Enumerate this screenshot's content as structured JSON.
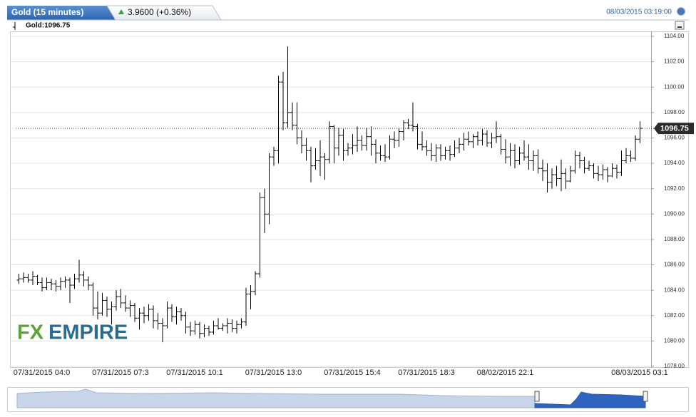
{
  "chart_data": {
    "type": "ohlc",
    "title": "Gold (15 minutes)",
    "change": "3.9600 (+0.36%)",
    "timestamp": "08/03/2015 03:19:00",
    "legend": "Gold:1096.75",
    "watermark": [
      "FX",
      "EMPIRE"
    ],
    "last_price": 1096.75,
    "color": "#000000",
    "grid": true,
    "ylim": [
      1078,
      1104
    ],
    "yticks": [
      {
        "value": 1078,
        "label": "1078.00"
      },
      {
        "value": 1080,
        "label": "1080.00"
      },
      {
        "value": 1082,
        "label": "1082.00"
      },
      {
        "value": 1084,
        "label": "1084.00"
      },
      {
        "value": 1086,
        "label": "1086.00"
      },
      {
        "value": 1088,
        "label": "1088.00"
      },
      {
        "value": 1090,
        "label": "1090.00"
      },
      {
        "value": 1092,
        "label": "1092.00"
      },
      {
        "value": 1094,
        "label": "1094.00"
      },
      {
        "value": 1096,
        "label": "1096.00"
      },
      {
        "value": 1098,
        "label": "1098.00"
      },
      {
        "value": 1100,
        "label": "1100.00"
      },
      {
        "value": 1102,
        "label": "1102.00"
      },
      {
        "value": 1104,
        "label": "1104.00"
      }
    ],
    "categories": [
      null,
      null,
      null,
      null,
      null,
      "07/31/2015 04:0",
      null,
      null,
      null,
      null,
      null,
      null,
      null,
      null,
      null,
      null,
      null,
      null,
      null,
      null,
      null,
      null,
      "07/31/2015 07:3",
      null,
      null,
      null,
      null,
      null,
      null,
      null,
      null,
      null,
      null,
      null,
      null,
      null,
      null,
      null,
      "07/31/2015 10:1",
      null,
      null,
      null,
      null,
      null,
      null,
      null,
      null,
      null,
      null,
      null,
      null,
      null,
      null,
      null,
      null,
      "07/31/2015 13:0",
      null,
      null,
      null,
      null,
      null,
      null,
      null,
      null,
      null,
      null,
      null,
      null,
      null,
      null,
      null,
      null,
      "07/31/2015 15:4",
      null,
      null,
      null,
      null,
      null,
      null,
      null,
      null,
      null,
      null,
      null,
      null,
      null,
      null,
      null,
      "07/31/2015 18:3",
      null,
      null,
      null,
      null,
      null,
      null,
      null,
      null,
      null,
      null,
      null,
      null,
      null,
      null,
      null,
      null,
      "08/02/2015 22:1",
      null,
      null,
      null,
      null,
      null,
      null,
      null,
      null,
      null,
      null,
      null,
      null,
      null,
      null,
      null,
      null,
      null,
      null,
      null,
      null,
      null,
      null,
      null,
      null,
      null,
      null,
      null,
      null,
      "08/03/2015 03:1"
    ],
    "series": [
      {
        "name": "Gold",
        "values": [
          [
            1084.8,
            1085.3,
            1084.5,
            1084.9
          ],
          [
            1084.9,
            1085.4,
            1084.6,
            1085.0
          ],
          [
            1085.0,
            1085.3,
            1084.6,
            1084.8
          ],
          [
            1084.8,
            1085.5,
            1084.4,
            1085.1
          ],
          [
            1085.1,
            1085.2,
            1084.4,
            1084.6
          ],
          [
            1084.6,
            1085.0,
            1083.9,
            1084.2
          ],
          [
            1084.2,
            1085.0,
            1084.0,
            1084.6
          ],
          [
            1084.6,
            1084.9,
            1084.0,
            1084.5
          ],
          [
            1084.5,
            1084.8,
            1083.9,
            1084.3
          ],
          [
            1084.3,
            1085.0,
            1084.0,
            1084.7
          ],
          [
            1084.7,
            1085.1,
            1084.2,
            1084.8
          ],
          [
            1084.8,
            1085.0,
            1083.0,
            1084.4
          ],
          [
            1084.4,
            1085.3,
            1084.1,
            1084.9
          ],
          [
            1084.9,
            1086.4,
            1084.6,
            1085.2
          ],
          [
            1085.2,
            1085.5,
            1084.3,
            1084.8
          ],
          [
            1084.8,
            1085.1,
            1084.0,
            1084.4
          ],
          [
            1084.4,
            1084.6,
            1082.0,
            1082.6
          ],
          [
            1082.6,
            1083.9,
            1081.7,
            1082.2
          ],
          [
            1082.2,
            1083.8,
            1082.0,
            1083.2
          ],
          [
            1083.2,
            1083.5,
            1081.9,
            1082.5
          ],
          [
            1082.5,
            1083.1,
            1081.3,
            1082.7
          ],
          [
            1082.7,
            1084.0,
            1082.4,
            1083.5
          ],
          [
            1083.5,
            1084.1,
            1082.6,
            1083.0
          ],
          [
            1083.0,
            1083.6,
            1082.3,
            1082.6
          ],
          [
            1082.6,
            1083.2,
            1081.9,
            1082.8
          ],
          [
            1082.8,
            1083.0,
            1081.5,
            1081.8
          ],
          [
            1081.8,
            1082.6,
            1080.9,
            1082.2
          ],
          [
            1082.2,
            1082.7,
            1081.4,
            1082.0
          ],
          [
            1082.0,
            1082.9,
            1081.6,
            1082.5
          ],
          [
            1082.5,
            1082.8,
            1081.0,
            1081.6
          ],
          [
            1081.6,
            1082.2,
            1080.9,
            1081.4
          ],
          [
            1081.4,
            1081.8,
            1079.9,
            1081.2
          ],
          [
            1081.2,
            1083.1,
            1081.0,
            1082.6
          ],
          [
            1082.6,
            1082.9,
            1081.5,
            1081.9
          ],
          [
            1081.9,
            1082.7,
            1081.3,
            1082.3
          ],
          [
            1082.3,
            1082.6,
            1081.6,
            1082.0
          ],
          [
            1082.0,
            1082.3,
            1080.6,
            1081.1
          ],
          [
            1081.1,
            1081.5,
            1080.4,
            1080.8
          ],
          [
            1080.8,
            1081.6,
            1080.5,
            1081.3
          ],
          [
            1081.3,
            1081.5,
            1080.2,
            1080.6
          ],
          [
            1080.6,
            1081.3,
            1080.3,
            1081.0
          ],
          [
            1081.0,
            1081.2,
            1080.4,
            1080.7
          ],
          [
            1080.7,
            1081.6,
            1080.5,
            1081.2
          ],
          [
            1081.2,
            1081.8,
            1080.9,
            1081.0
          ],
          [
            1081.0,
            1081.4,
            1080.8,
            1081.2
          ],
          [
            1081.2,
            1081.8,
            1080.6,
            1081.4
          ],
          [
            1081.4,
            1081.7,
            1080.7,
            1081.0
          ],
          [
            1081.0,
            1081.6,
            1080.6,
            1081.3
          ],
          [
            1081.3,
            1081.8,
            1081.0,
            1081.5
          ],
          [
            1081.5,
            1084.2,
            1081.2,
            1083.7
          ],
          [
            1083.7,
            1084.4,
            1082.5,
            1083.9
          ],
          [
            1083.9,
            1085.5,
            1083.6,
            1085.3
          ],
          [
            1085.3,
            1091.7,
            1085.0,
            1091.3
          ],
          [
            1091.3,
            1092.0,
            1088.5,
            1090.0
          ],
          [
            1090.0,
            1094.8,
            1089.2,
            1094.5
          ],
          [
            1094.5,
            1095.3,
            1093.8,
            1095.0
          ],
          [
            1095.0,
            1100.9,
            1094.0,
            1100.4
          ],
          [
            1100.4,
            1101.2,
            1096.6,
            1097.2
          ],
          [
            1097.2,
            1103.2,
            1096.8,
            1098.0
          ],
          [
            1098.0,
            1098.8,
            1096.6,
            1097.0
          ],
          [
            1097.0,
            1098.8,
            1095.5,
            1096.0
          ],
          [
            1096.0,
            1096.6,
            1094.8,
            1095.4
          ],
          [
            1095.4,
            1096.0,
            1094.2,
            1095.0
          ],
          [
            1095.0,
            1095.3,
            1092.5,
            1093.8
          ],
          [
            1093.8,
            1095.2,
            1093.5,
            1094.2
          ],
          [
            1094.2,
            1095.8,
            1093.0,
            1094.5
          ],
          [
            1094.5,
            1094.8,
            1092.7,
            1094.3
          ],
          [
            1094.3,
            1097.3,
            1094.0,
            1096.9
          ],
          [
            1096.9,
            1097.0,
            1094.0,
            1095.2
          ],
          [
            1095.2,
            1096.8,
            1094.6,
            1096.2
          ],
          [
            1096.2,
            1096.7,
            1094.2,
            1095.0
          ],
          [
            1095.0,
            1095.6,
            1094.6,
            1095.2
          ],
          [
            1095.2,
            1096.3,
            1094.7,
            1095.4
          ],
          [
            1095.4,
            1096.9,
            1094.9,
            1095.8
          ],
          [
            1095.8,
            1096.2,
            1095.0,
            1095.4
          ],
          [
            1095.4,
            1096.8,
            1095.0,
            1096.1
          ],
          [
            1096.1,
            1096.9,
            1094.6,
            1095.5
          ],
          [
            1095.5,
            1095.9,
            1094.0,
            1094.8
          ],
          [
            1094.8,
            1095.4,
            1094.2,
            1094.6
          ],
          [
            1094.6,
            1095.5,
            1094.1,
            1094.5
          ],
          [
            1094.5,
            1096.2,
            1094.3,
            1095.9
          ],
          [
            1095.9,
            1096.5,
            1095.2,
            1095.8
          ],
          [
            1095.8,
            1096.8,
            1095.3,
            1096.5
          ],
          [
            1096.5,
            1097.4,
            1095.8,
            1097.2
          ],
          [
            1097.2,
            1097.5,
            1096.7,
            1097.0
          ],
          [
            1097.0,
            1098.8,
            1096.5,
            1096.9
          ],
          [
            1096.9,
            1097.1,
            1095.1,
            1095.5
          ],
          [
            1095.5,
            1096.5,
            1095.0,
            1095.3
          ],
          [
            1095.3,
            1095.8,
            1094.6,
            1095.0
          ],
          [
            1095.0,
            1095.6,
            1094.2,
            1094.6
          ],
          [
            1094.6,
            1095.5,
            1094.1,
            1095.2
          ],
          [
            1095.2,
            1095.5,
            1094.2,
            1094.6
          ],
          [
            1094.6,
            1095.3,
            1094.3,
            1095.0
          ],
          [
            1095.0,
            1095.4,
            1094.2,
            1094.7
          ],
          [
            1094.7,
            1095.8,
            1094.5,
            1095.2
          ],
          [
            1095.2,
            1096.0,
            1094.8,
            1095.5
          ],
          [
            1095.5,
            1096.4,
            1095.0,
            1095.9
          ],
          [
            1095.9,
            1096.5,
            1095.4,
            1095.7
          ],
          [
            1095.7,
            1096.3,
            1095.2,
            1096.1
          ],
          [
            1096.1,
            1096.5,
            1095.4,
            1095.8
          ],
          [
            1095.8,
            1096.7,
            1095.4,
            1096.3
          ],
          [
            1096.3,
            1096.6,
            1095.3,
            1095.6
          ],
          [
            1095.6,
            1096.4,
            1095.2,
            1096.0
          ],
          [
            1096.0,
            1097.3,
            1095.6,
            1096.1
          ],
          [
            1096.1,
            1096.3,
            1094.7,
            1095.1
          ],
          [
            1095.1,
            1095.9,
            1094.0,
            1094.5
          ],
          [
            1094.5,
            1095.6,
            1093.8,
            1095.0
          ],
          [
            1095.0,
            1095.5,
            1093.6,
            1094.2
          ],
          [
            1094.2,
            1095.3,
            1093.9,
            1094.8
          ],
          [
            1094.8,
            1095.8,
            1094.2,
            1094.5
          ],
          [
            1094.5,
            1095.5,
            1093.5,
            1094.2
          ],
          [
            1094.2,
            1095.0,
            1093.4,
            1094.6
          ],
          [
            1094.6,
            1095.1,
            1093.2,
            1093.6
          ],
          [
            1093.6,
            1094.3,
            1092.6,
            1093.4
          ],
          [
            1093.4,
            1094.0,
            1091.7,
            1092.5
          ],
          [
            1092.5,
            1093.6,
            1092.0,
            1093.1
          ],
          [
            1093.1,
            1093.8,
            1092.2,
            1092.8
          ],
          [
            1092.8,
            1094.3,
            1091.8,
            1093.2
          ],
          [
            1093.2,
            1093.6,
            1092.0,
            1092.6
          ],
          [
            1092.6,
            1093.8,
            1092.5,
            1093.4
          ],
          [
            1093.4,
            1095.0,
            1093.2,
            1094.6
          ],
          [
            1094.6,
            1094.9,
            1093.6,
            1094.2
          ],
          [
            1094.2,
            1094.5,
            1093.2,
            1093.6
          ],
          [
            1093.6,
            1094.2,
            1093.4,
            1093.8
          ],
          [
            1093.8,
            1094.0,
            1092.8,
            1093.2
          ],
          [
            1093.2,
            1093.8,
            1092.6,
            1093.1
          ],
          [
            1093.1,
            1093.9,
            1092.7,
            1093.5
          ],
          [
            1093.5,
            1093.7,
            1092.5,
            1093.0
          ],
          [
            1093.0,
            1094.0,
            1092.9,
            1093.6
          ],
          [
            1093.6,
            1093.9,
            1092.8,
            1093.3
          ],
          [
            1093.3,
            1095.0,
            1093.0,
            1094.2
          ],
          [
            1094.2,
            1095.2,
            1094.0,
            1094.6
          ],
          [
            1094.6,
            1095.0,
            1094.1,
            1094.4
          ],
          [
            1094.4,
            1096.2,
            1094.2,
            1095.9
          ],
          [
            1095.9,
            1097.3,
            1095.6,
            1096.75
          ]
        ]
      }
    ]
  }
}
